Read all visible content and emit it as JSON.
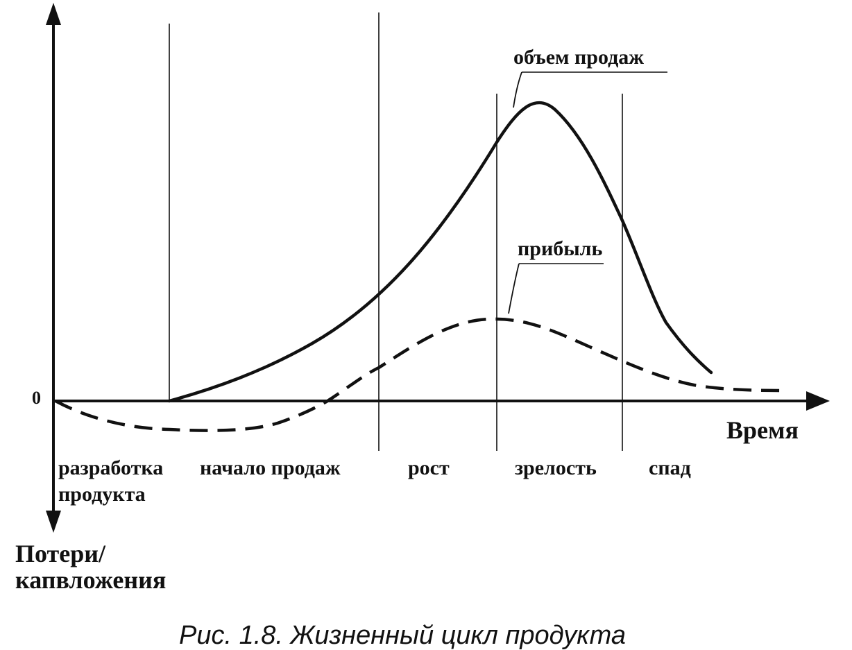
{
  "diagram": {
    "zero_label": "0",
    "x_axis_label": "Время",
    "y_axis_label_line1": "Потери/",
    "y_axis_label_line2": "капвложения",
    "curves": {
      "sales_label": "объем продаж",
      "profit_label": "прибыль"
    },
    "stages": {
      "development_line1": "разработка",
      "development_line2": "продукта",
      "introduction": "начало продаж",
      "growth": "рост",
      "maturity": "зрелость",
      "decline": "спад"
    },
    "caption": "Рис. 1.8. Жизненный цикл продукта"
  }
}
